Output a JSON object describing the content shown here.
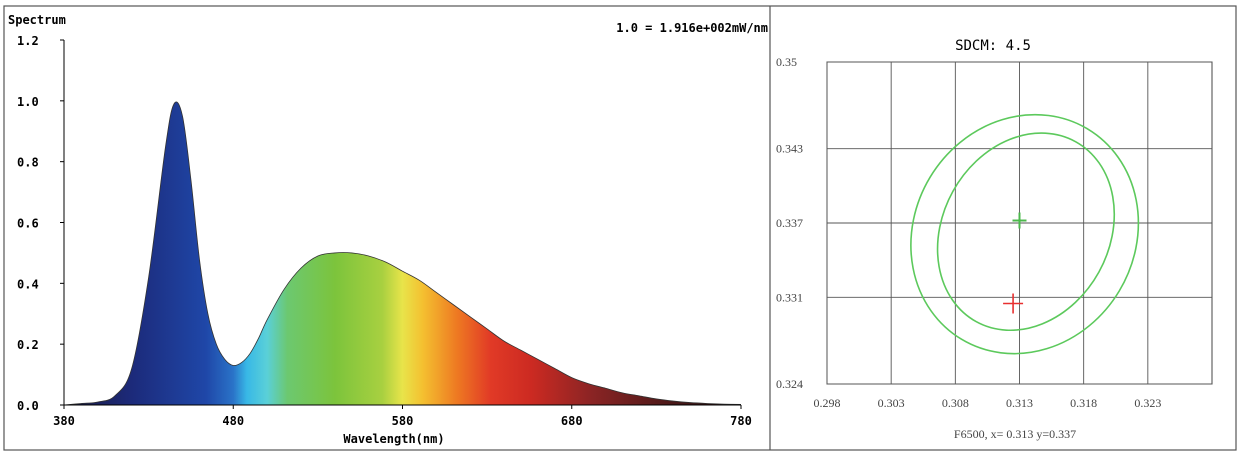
{
  "chart_data": [
    {
      "type": "area",
      "title": "Spectrum",
      "scale_note": "1.0 = 1.916e+002mW/nm",
      "xlabel": "Wavelength(nm)",
      "ylabel": "",
      "xlim": [
        380,
        780
      ],
      "ylim": [
        0,
        1.2
      ],
      "x_ticks": [
        "380",
        "480",
        "580",
        "680",
        "780"
      ],
      "y_ticks": [
        "0.0",
        "0.2",
        "0.4",
        "0.6",
        "0.8",
        "1.0",
        "1.2"
      ],
      "series": [
        {
          "x": [
            380,
            390,
            400,
            410,
            420,
            430,
            440,
            445,
            450,
            455,
            460,
            465,
            470,
            475,
            480,
            485,
            490,
            495,
            500,
            510,
            520,
            530,
            540,
            550,
            560,
            570,
            580,
            590,
            600,
            610,
            620,
            630,
            640,
            650,
            660,
            670,
            680,
            690,
            700,
            710,
            720,
            730,
            740,
            750,
            760,
            770,
            780
          ],
          "values": [
            0.0,
            0.005,
            0.01,
            0.03,
            0.12,
            0.42,
            0.85,
            0.99,
            0.95,
            0.74,
            0.48,
            0.3,
            0.2,
            0.15,
            0.13,
            0.14,
            0.17,
            0.22,
            0.28,
            0.38,
            0.45,
            0.49,
            0.5,
            0.5,
            0.49,
            0.47,
            0.44,
            0.41,
            0.37,
            0.33,
            0.29,
            0.25,
            0.21,
            0.18,
            0.15,
            0.12,
            0.09,
            0.07,
            0.055,
            0.04,
            0.03,
            0.02,
            0.013,
            0.008,
            0.005,
            0.003,
            0.002
          ]
        }
      ]
    },
    {
      "type": "scatter",
      "title": "SDCM: 4.5",
      "xlim": [
        0.298,
        0.328
      ],
      "ylim": [
        0.324,
        0.35
      ],
      "x_ticks": [
        "0.298",
        "0.303",
        "0.308",
        "0.313",
        "0.318",
        "0.323"
      ],
      "y_ticks": [
        "0.35",
        "0.343",
        "0.337",
        "0.331",
        "0.324"
      ],
      "footer": "F6500,  x= 0.313 y=0.337",
      "target_center": [
        0.313,
        0.3372
      ],
      "measured_point": [
        0.3125,
        0.3305
      ],
      "ellipses": [
        {
          "cx": 0.3134,
          "cy": 0.3361,
          "rx": 0.0086,
          "ry": 0.0099,
          "rot": 31
        },
        {
          "cx": 0.3135,
          "cy": 0.3363,
          "rx": 0.0065,
          "ry": 0.0083,
          "rot": 29
        }
      ],
      "colors": {
        "ellipse": "#5cc95c",
        "center": "#4cb84c",
        "measured": "#e83030"
      }
    }
  ]
}
